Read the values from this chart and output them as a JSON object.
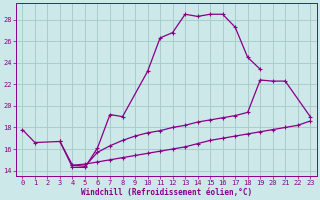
{
  "xlabel": "Windchill (Refroidissement éolien,°C)",
  "bg_color": "#cce8e8",
  "grid_color": "#aacccc",
  "line_color": "#880088",
  "line1_x": [
    0,
    1,
    3,
    4,
    5,
    6,
    7,
    8,
    10,
    11,
    12,
    13,
    14,
    15,
    16,
    17,
    18,
    19
  ],
  "line1_y": [
    17.8,
    16.6,
    16.7,
    14.3,
    14.3,
    16.1,
    19.2,
    19.0,
    23.2,
    26.3,
    26.8,
    28.5,
    28.3,
    28.5,
    28.5,
    27.3,
    24.5,
    23.4
  ],
  "line2_x": [
    3,
    4,
    5,
    6,
    7,
    8,
    9,
    10,
    11,
    12,
    13,
    14,
    15,
    16,
    17,
    18,
    19,
    20,
    21,
    23
  ],
  "line2_y": [
    16.7,
    14.5,
    14.4,
    15.7,
    16.3,
    16.8,
    17.2,
    17.5,
    17.7,
    18.0,
    18.2,
    18.5,
    18.7,
    18.9,
    19.1,
    19.4,
    22.4,
    22.3,
    22.3,
    19.0
  ],
  "line3_x": [
    4,
    5,
    6,
    7,
    8,
    9,
    10,
    11,
    12,
    13,
    14,
    15,
    16,
    17,
    18,
    19,
    20,
    21,
    22,
    23
  ],
  "line3_y": [
    14.5,
    14.6,
    14.8,
    15.0,
    15.2,
    15.4,
    15.6,
    15.8,
    16.0,
    16.2,
    16.5,
    16.8,
    17.0,
    17.2,
    17.4,
    17.6,
    17.8,
    18.0,
    18.2,
    18.6
  ],
  "xlim": [
    -0.5,
    23.5
  ],
  "ylim": [
    13.5,
    29.5
  ],
  "xticks": [
    0,
    1,
    2,
    3,
    4,
    5,
    6,
    7,
    8,
    9,
    10,
    11,
    12,
    13,
    14,
    15,
    16,
    17,
    18,
    19,
    20,
    21,
    22,
    23
  ],
  "yticks": [
    14,
    16,
    18,
    20,
    22,
    24,
    26,
    28
  ]
}
